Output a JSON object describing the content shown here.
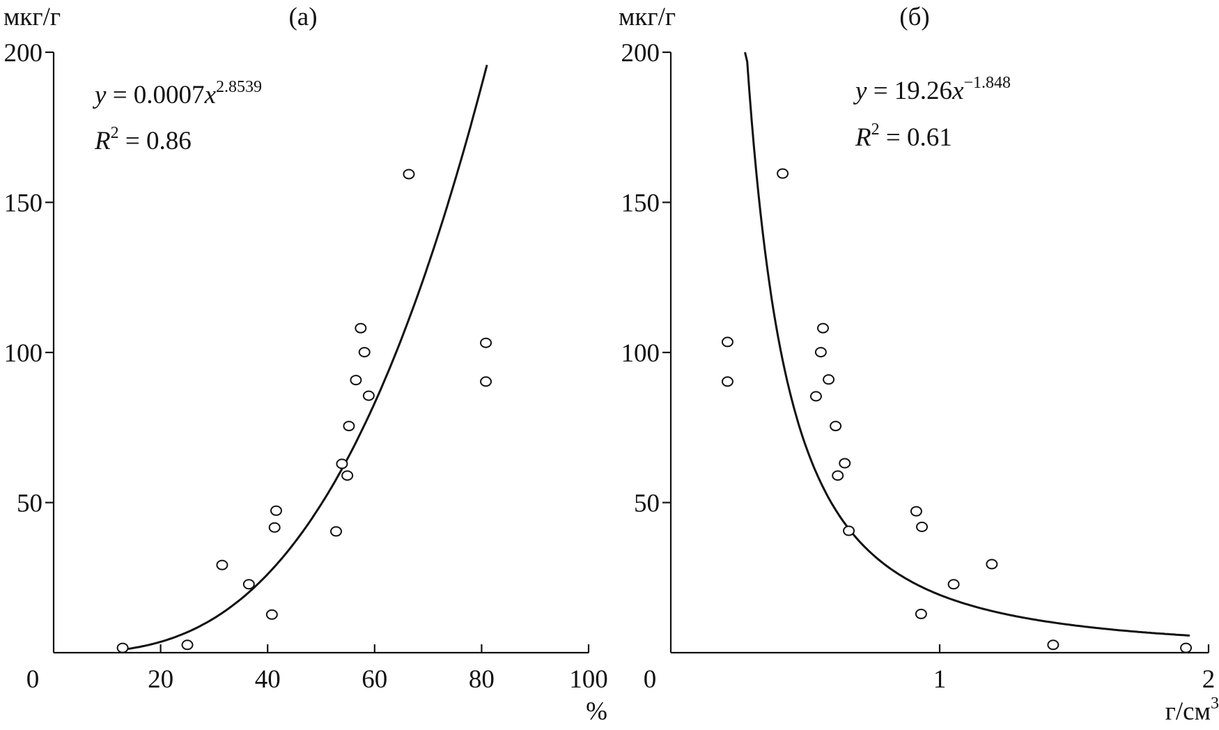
{
  "chart_data": [
    {
      "type": "scatter",
      "panel_label": "(а)",
      "ylabel": "мкг/г",
      "xlabel": "%",
      "xlim": [
        0,
        100
      ],
      "ylim": [
        0,
        200
      ],
      "x_ticks": [
        "0",
        "20",
        "40",
        "60",
        "80",
        "100"
      ],
      "y_ticks": [
        "50",
        "100",
        "150",
        "200"
      ],
      "grid": false,
      "points": [
        [
          12.9,
          1.6
        ],
        [
          25,
          2.6
        ],
        [
          31.5,
          29.2
        ],
        [
          36.5,
          22.8
        ],
        [
          40.8,
          12.7
        ],
        [
          41.3,
          41.7
        ],
        [
          41.6,
          47.3
        ],
        [
          52.8,
          40.4
        ],
        [
          53.9,
          62.9
        ],
        [
          54.9,
          59
        ],
        [
          55.2,
          75.5
        ],
        [
          56.5,
          90.8
        ],
        [
          57.4,
          108.1
        ],
        [
          58.1,
          100.1
        ],
        [
          58.9,
          85.6
        ],
        [
          66.4,
          159.4
        ],
        [
          80.8,
          103.2
        ],
        [
          80.8,
          90.3
        ]
      ],
      "fit": {
        "a": 0.0007,
        "b": 2.8539,
        "x_range": [
          13.5,
          81
        ],
        "equation_lhs": "y",
        "equation_mid": " = 0.0007",
        "equation_var": "x",
        "equation_exp": "2.8539",
        "r2_sym": "R",
        "r2_exp": "2",
        "r2_text": " = 0.86"
      }
    },
    {
      "type": "scatter",
      "panel_label": "(б)",
      "ylabel": "мкг/г",
      "xlabel": "г/см",
      "xlabel_exp": "3",
      "xlim": [
        0,
        2
      ],
      "ylim": [
        0,
        200
      ],
      "x_ticks": [
        "0",
        "1",
        "2"
      ],
      "y_ticks": [
        "50",
        "100",
        "150",
        "200"
      ],
      "grid": false,
      "points": [
        [
          0.211,
          103.5
        ],
        [
          0.211,
          90.3
        ],
        [
          0.416,
          159.6
        ],
        [
          0.54,
          85.4
        ],
        [
          0.558,
          100.1
        ],
        [
          0.566,
          108.1
        ],
        [
          0.587,
          91
        ],
        [
          0.613,
          75.5
        ],
        [
          0.621,
          59
        ],
        [
          0.647,
          63.1
        ],
        [
          0.662,
          40.6
        ],
        [
          0.913,
          47.1
        ],
        [
          0.934,
          41.9
        ],
        [
          0.931,
          12.9
        ],
        [
          1.052,
          22.8
        ],
        [
          1.194,
          29.5
        ],
        [
          1.422,
          2.6
        ],
        [
          1.916,
          1.6
        ]
      ],
      "fit": {
        "a": 19.26,
        "b": -1.848,
        "x_range": [
          0.276,
          1.93
        ],
        "equation_lhs": "y",
        "equation_mid": " = 19.26",
        "equation_var": "x",
        "equation_exp": "−1.848",
        "r2_sym": "R",
        "r2_exp": "2",
        "r2_text": " = 0.61"
      }
    }
  ]
}
